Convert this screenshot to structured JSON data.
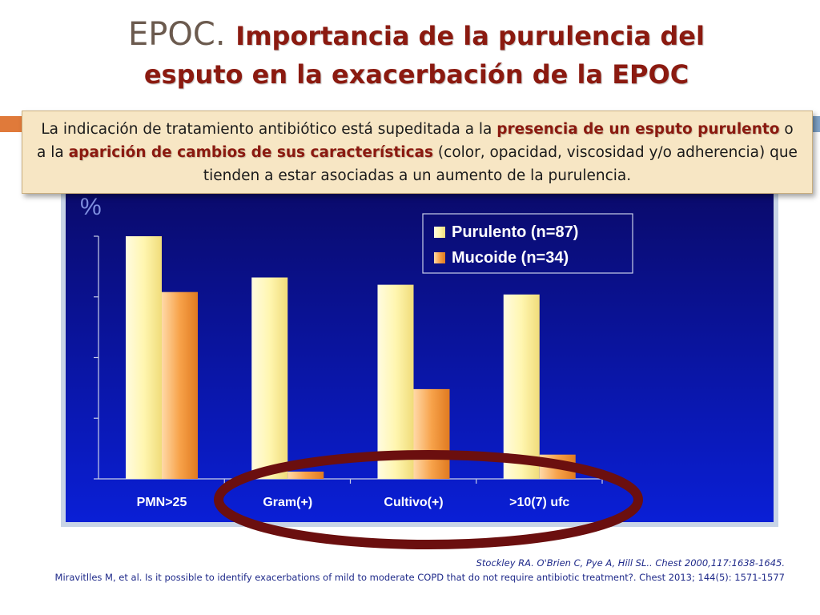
{
  "title": {
    "prefix": "EPOC.",
    "main": "Importancia de la purulencia del",
    "line2": "esputo en la exacerbación de la EPOC"
  },
  "note": {
    "part1": "La indicación de tratamiento antibiótico está supeditada a la ",
    "bold1": "presencia de un esputo purulento",
    "part2": " o a la ",
    "bold2": "aparición de cambios de sus características",
    "part3": " (color, opacidad, viscosidad y/o adherencia) que tienden a estar asociadas a un aumento de la purulencia."
  },
  "citation": {
    "line1": "Stockley RA. O'Brien C, Pye A, Hill SL.. Chest 2000,117:1638-1645.",
    "line2": "Miravitlles M, et al. Is it possible to identify exacerbations of mild to moderate COPD that do not require antibiotic treatment?. Chest 2013; 144(5): 1571-1577"
  },
  "colors": {
    "chart_bg_top": "#0a0a6a",
    "chart_bg_bottom": "#0a1fd6",
    "purulento": "#fff6b0",
    "mucoide": "#f39a3c",
    "ellipse": "#6b0f0f",
    "title": "#8b1a10"
  },
  "chart_data": {
    "type": "bar",
    "ylabel": "%",
    "categories": [
      "PMN>25",
      "Gram(+)",
      "Cultivo(+)",
      ">10(7) ufc"
    ],
    "ylim": [
      0,
      100
    ],
    "grid": false,
    "legend_position": "top-right",
    "series": [
      {
        "name": "Purulento (n=87)",
        "values": [
          100,
          83,
          80,
          76
        ]
      },
      {
        "name": "Mucoide (n=34)",
        "values": [
          77,
          3,
          37,
          10
        ]
      }
    ]
  }
}
